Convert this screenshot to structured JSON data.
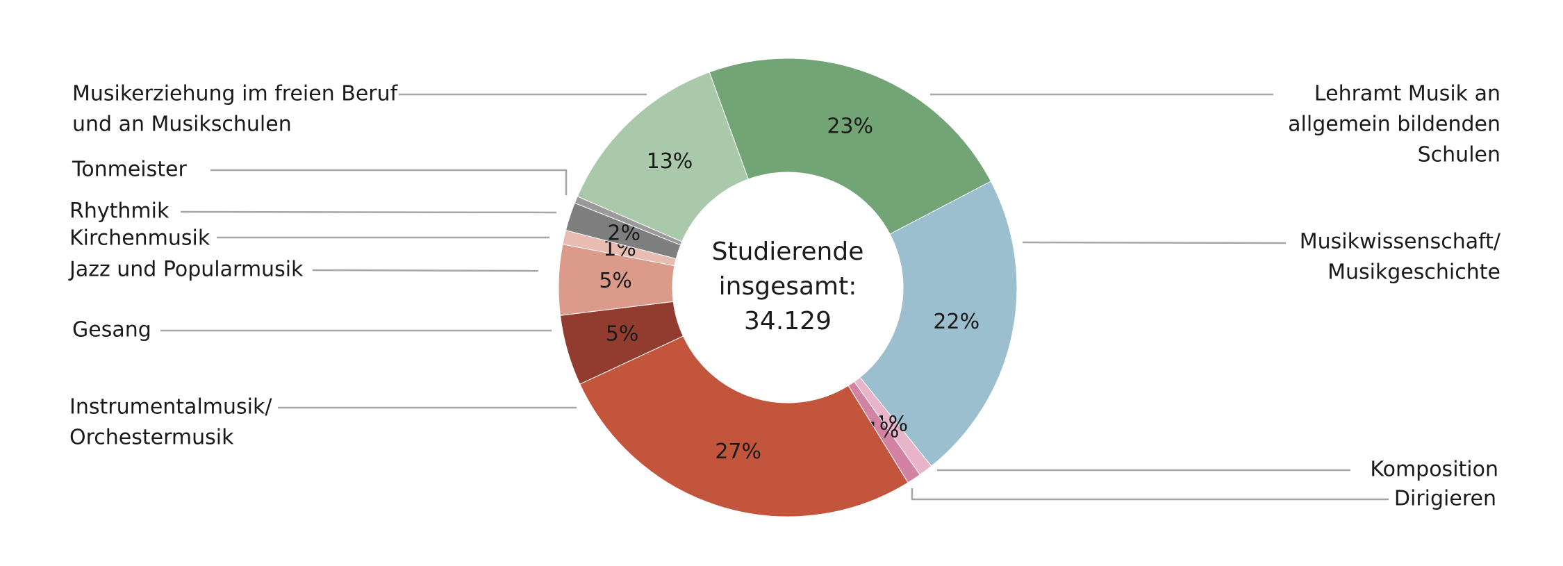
{
  "chart_data": {
    "type": "donut",
    "center_text": [
      "Studierende",
      "insgesamt:",
      "34.129"
    ],
    "categories": [
      [
        "Lehramt Musik an",
        "allgemein bildenden",
        "Schulen"
      ],
      [
        "Musikwissenschaft/",
        "Musikgeschichte"
      ],
      [
        "Komposition"
      ],
      [
        "Dirigieren"
      ],
      [
        "Instrumentalmusik/",
        "Orchestermusik"
      ],
      [
        "Gesang"
      ],
      [
        "Jazz und Popularmusik"
      ],
      [
        "Kirchenmusik"
      ],
      [
        "Rhythmik"
      ],
      [
        "Tonmeister"
      ],
      [
        "Musikerziehung im freien Beruf",
        "und an Musikschulen"
      ]
    ],
    "values": [
      23,
      22,
      1,
      1,
      27,
      5,
      5,
      1,
      2,
      0.5,
      13
    ],
    "value_labels": [
      "23%",
      "22%",
      "1%",
      "1%",
      "27%",
      "5%",
      "5%",
      "1%",
      "2%",
      null,
      "13%"
    ],
    "colors": [
      "#72a476",
      "#9bbfce",
      "#e8b4c8",
      "#d283a4",
      "#c2553b",
      "#913c2e",
      "#dc9a8b",
      "#e9bcb2",
      "#7f7f7f",
      "#9a9a9a",
      "#a9c9aa"
    ]
  }
}
